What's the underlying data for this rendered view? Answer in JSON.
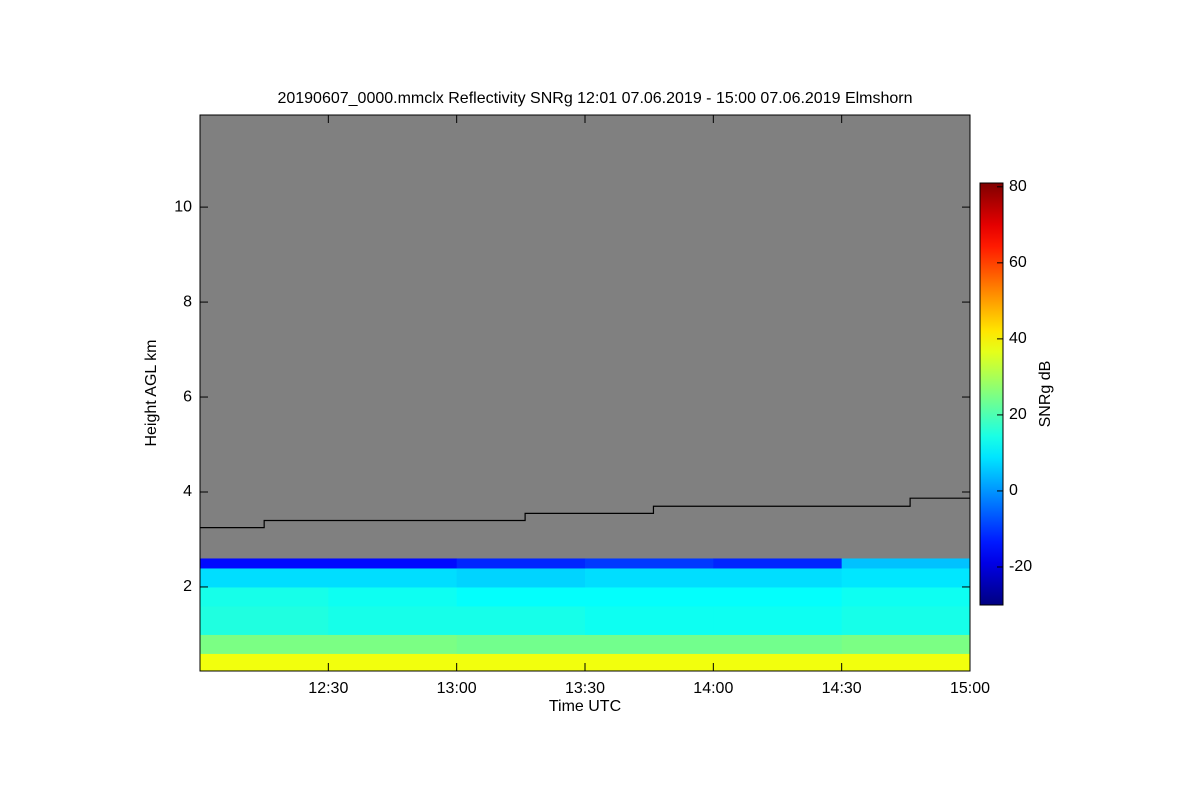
{
  "chart_data": {
    "type": "heatmap",
    "title": "20190607_0000.mmclx Reflectivity SNRg   12:01 07.06.2019 - 15:00 07.06.2019 Elmshorn",
    "x_label": "Time UTC",
    "y_label": "Height AGL km",
    "colorbar_label": "SNRg dB",
    "background_color": "#808080",
    "xlim": [
      720,
      900
    ],
    "xticks": [
      {
        "value": 750,
        "label": "12:30"
      },
      {
        "value": 780,
        "label": "13:00"
      },
      {
        "value": 810,
        "label": "13:30"
      },
      {
        "value": 840,
        "label": "14:00"
      },
      {
        "value": 870,
        "label": "14:30"
      },
      {
        "value": 900,
        "label": "15:00"
      }
    ],
    "ylim": [
      0.23,
      11.94
    ],
    "yticks": [
      2,
      4,
      6,
      8,
      10
    ],
    "clim": [
      -30,
      81
    ],
    "cticks": [
      -20,
      0,
      20,
      40,
      60,
      80
    ],
    "x_edges": [
      720,
      750,
      780,
      810,
      840,
      870,
      900
    ],
    "y_edges": [
      0.23,
      0.6,
      1.0,
      1.6,
      2.0,
      2.4,
      2.6
    ],
    "z": [
      [
        38,
        38,
        38,
        38,
        38,
        38
      ],
      [
        25,
        25,
        24,
        24,
        24,
        25
      ],
      [
        15,
        14,
        14,
        13,
        13,
        14
      ],
      [
        14,
        13,
        12,
        12,
        12,
        13
      ],
      [
        8,
        8,
        7,
        8,
        8,
        9
      ],
      [
        -15,
        -15,
        -12,
        -10,
        -12,
        5
      ]
    ],
    "line": {
      "color": "#000000",
      "step": "post",
      "x": [
        720,
        735,
        796,
        826,
        886,
        900
      ],
      "values": [
        3.25,
        3.4,
        3.55,
        3.7,
        3.87,
        3.87
      ]
    }
  }
}
